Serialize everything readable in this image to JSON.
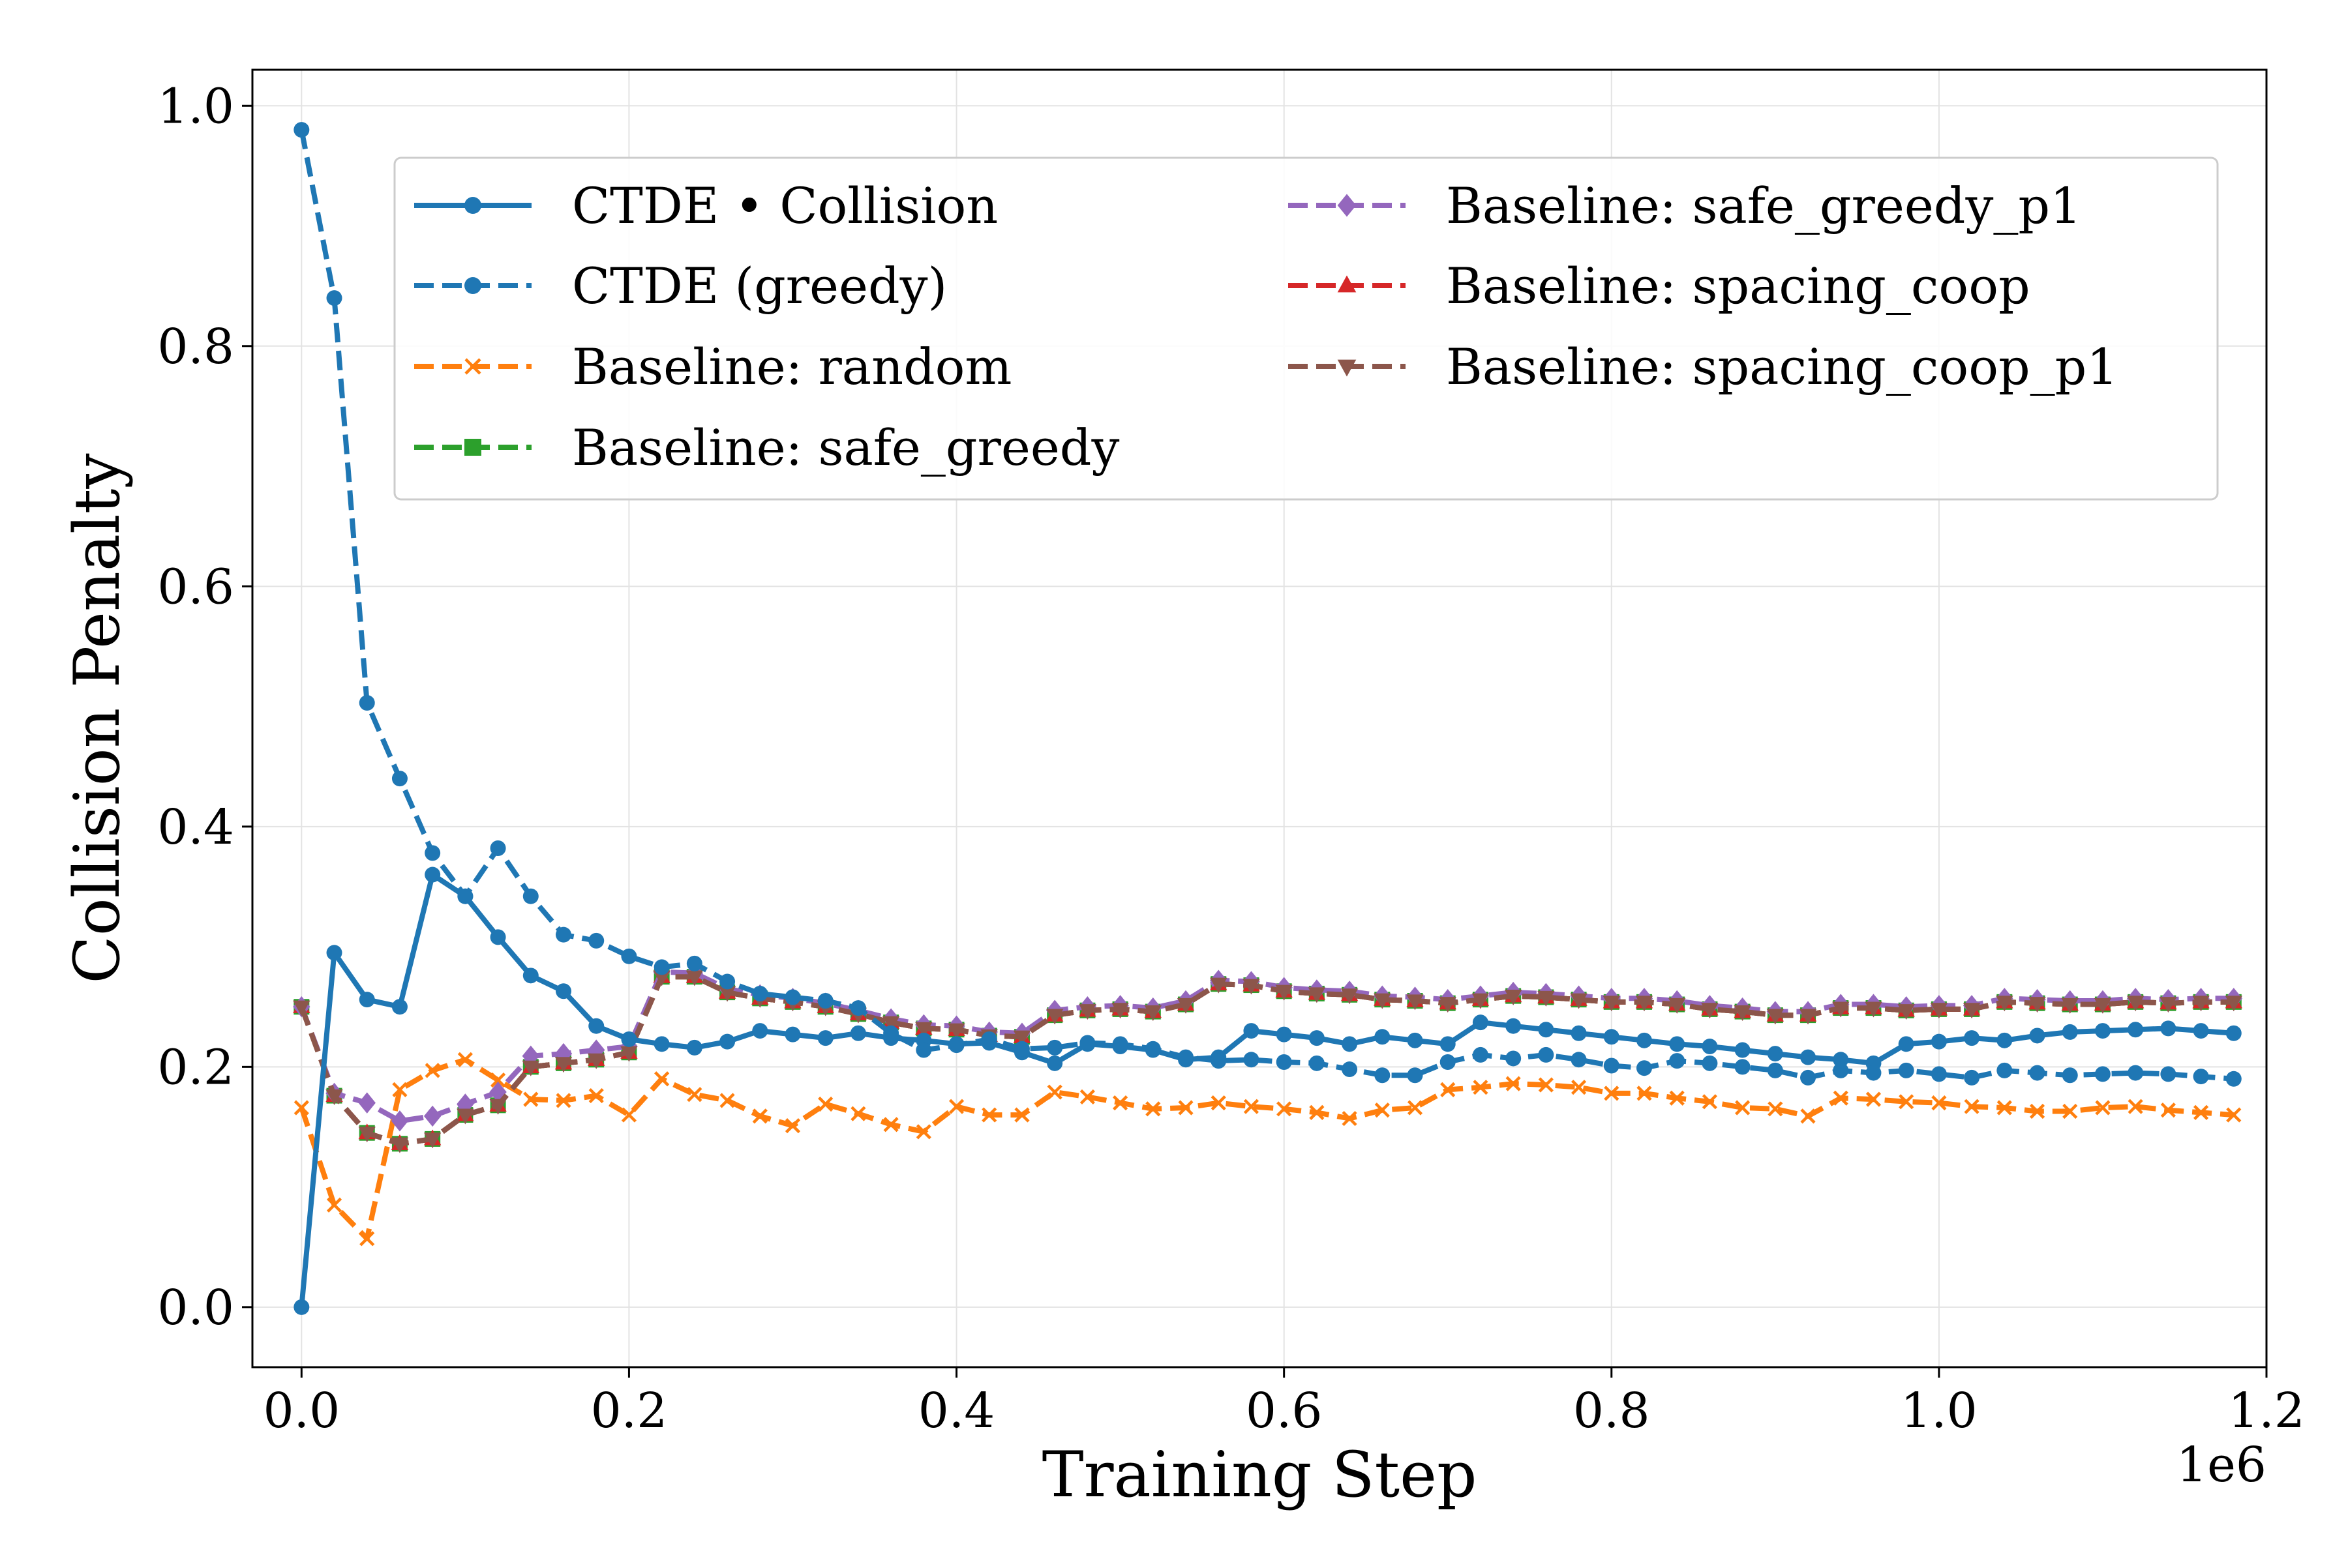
{
  "chart_data": {
    "type": "line",
    "title": "",
    "xlabel": "Training Step",
    "ylabel": "Collision Penalty",
    "x_offset_label": "1e6",
    "xlim": [
      -0.03,
      1.2
    ],
    "ylim": [
      -0.05,
      1.03
    ],
    "x_ticks": [
      0.0,
      0.2,
      0.4,
      0.6,
      0.8,
      1.0,
      1.2
    ],
    "x_tick_labels": [
      "0.0",
      "0.2",
      "0.4",
      "0.6",
      "0.8",
      "1.0",
      "1.2"
    ],
    "y_ticks": [
      0.0,
      0.2,
      0.4,
      0.6,
      0.8,
      1.0
    ],
    "y_tick_labels": [
      "0.0",
      "0.2",
      "0.4",
      "0.6",
      "0.8",
      "1.0"
    ],
    "grid": true,
    "legend_position": "upper-right",
    "x": [
      0.0,
      0.02,
      0.04,
      0.06,
      0.08,
      0.1,
      0.12,
      0.14,
      0.16,
      0.18,
      0.2,
      0.22,
      0.24,
      0.26,
      0.28,
      0.3,
      0.32,
      0.34,
      0.36,
      0.38,
      0.4,
      0.42,
      0.44,
      0.46,
      0.48,
      0.5,
      0.52,
      0.54,
      0.56,
      0.58,
      0.6,
      0.62,
      0.64,
      0.66,
      0.68,
      0.7,
      0.72,
      0.74,
      0.76,
      0.78,
      0.8,
      0.82,
      0.84,
      0.86,
      0.88,
      0.9,
      0.92,
      0.94,
      0.96,
      0.98,
      1.0,
      1.02,
      1.04,
      1.06,
      1.08,
      1.1,
      1.12,
      1.14,
      1.16,
      1.18
    ],
    "series": [
      {
        "name": "CTDE • Collision",
        "color": "#1f77b4",
        "linestyle": "solid",
        "marker": "circle",
        "values": [
          0.0,
          0.295,
          0.256,
          0.25,
          0.36,
          0.342,
          0.308,
          0.276,
          0.263,
          0.234,
          0.223,
          0.219,
          0.216,
          0.221,
          0.23,
          0.227,
          0.224,
          0.228,
          0.224,
          0.222,
          0.219,
          0.22,
          0.212,
          0.203,
          0.219,
          0.217,
          0.214,
          0.206,
          0.208,
          0.23,
          0.227,
          0.224,
          0.219,
          0.225,
          0.222,
          0.219,
          0.237,
          0.234,
          0.231,
          0.228,
          0.225,
          0.222,
          0.219,
          0.217,
          0.214,
          0.211,
          0.208,
          0.206,
          0.203,
          0.219,
          0.221,
          0.224,
          0.222,
          0.226,
          0.229,
          0.23,
          0.231,
          0.232,
          0.23,
          0.228
        ]
      },
      {
        "name": "CTDE (greedy)",
        "color": "#1f77b4",
        "linestyle": "dashed",
        "marker": "circle",
        "values": [
          0.98,
          0.84,
          0.503,
          0.44,
          0.378,
          0.342,
          0.382,
          0.342,
          0.31,
          0.305,
          0.292,
          0.283,
          0.286,
          0.271,
          0.261,
          0.258,
          0.255,
          0.249,
          0.228,
          0.214,
          0.218,
          0.223,
          0.215,
          0.216,
          0.22,
          0.219,
          0.215,
          0.208,
          0.205,
          0.206,
          0.204,
          0.203,
          0.198,
          0.193,
          0.193,
          0.204,
          0.21,
          0.207,
          0.21,
          0.206,
          0.201,
          0.199,
          0.205,
          0.203,
          0.2,
          0.197,
          0.191,
          0.197,
          0.195,
          0.197,
          0.194,
          0.191,
          0.197,
          0.195,
          0.193,
          0.194,
          0.195,
          0.194,
          0.192,
          0.19
        ]
      },
      {
        "name": "Baseline: random",
        "color": "#ff7f0e",
        "linestyle": "dashed",
        "marker": "x",
        "values": [
          0.166,
          0.085,
          0.057,
          0.181,
          0.197,
          0.206,
          0.189,
          0.173,
          0.172,
          0.176,
          0.16,
          0.19,
          0.177,
          0.172,
          0.159,
          0.151,
          0.169,
          0.161,
          0.152,
          0.146,
          0.167,
          0.16,
          0.16,
          0.179,
          0.175,
          0.17,
          0.165,
          0.166,
          0.17,
          0.167,
          0.165,
          0.162,
          0.157,
          0.164,
          0.166,
          0.181,
          0.183,
          0.186,
          0.185,
          0.183,
          0.178,
          0.178,
          0.174,
          0.171,
          0.166,
          0.165,
          0.159,
          0.174,
          0.173,
          0.171,
          0.17,
          0.167,
          0.166,
          0.163,
          0.163,
          0.166,
          0.167,
          0.164,
          0.162,
          0.16
        ]
      },
      {
        "name": "Baseline: safe_greedy",
        "color": "#2ca02c",
        "linestyle": "dashed",
        "marker": "square",
        "values": [
          0.25,
          0.176,
          0.145,
          0.136,
          0.14,
          0.16,
          0.168,
          0.2,
          0.203,
          0.206,
          0.212,
          0.275,
          0.275,
          0.262,
          0.257,
          0.254,
          0.25,
          0.244,
          0.237,
          0.232,
          0.231,
          0.226,
          0.225,
          0.243,
          0.247,
          0.248,
          0.246,
          0.252,
          0.269,
          0.268,
          0.263,
          0.261,
          0.26,
          0.256,
          0.255,
          0.253,
          0.256,
          0.259,
          0.258,
          0.256,
          0.254,
          0.254,
          0.252,
          0.248,
          0.246,
          0.243,
          0.243,
          0.249,
          0.249,
          0.247,
          0.248,
          0.248,
          0.254,
          0.253,
          0.252,
          0.252,
          0.254,
          0.253,
          0.254,
          0.254
        ]
      },
      {
        "name": "Baseline: safe_greedy_p1",
        "color": "#9467bd",
        "linestyle": "dashed",
        "marker": "diamond",
        "values": [
          0.25,
          0.178,
          0.17,
          0.155,
          0.159,
          0.169,
          0.179,
          0.209,
          0.211,
          0.214,
          0.217,
          0.279,
          0.278,
          0.265,
          0.26,
          0.257,
          0.253,
          0.247,
          0.24,
          0.235,
          0.234,
          0.229,
          0.228,
          0.247,
          0.25,
          0.251,
          0.249,
          0.255,
          0.272,
          0.271,
          0.266,
          0.264,
          0.263,
          0.259,
          0.258,
          0.256,
          0.259,
          0.262,
          0.261,
          0.259,
          0.257,
          0.257,
          0.255,
          0.251,
          0.249,
          0.246,
          0.246,
          0.252,
          0.252,
          0.25,
          0.251,
          0.251,
          0.257,
          0.256,
          0.255,
          0.255,
          0.257,
          0.256,
          0.257,
          0.257
        ]
      },
      {
        "name": "Baseline: spacing_coop",
        "color": "#d62728",
        "linestyle": "dashed",
        "marker": "triangle-up",
        "values": [
          0.25,
          0.176,
          0.145,
          0.136,
          0.14,
          0.16,
          0.168,
          0.2,
          0.203,
          0.206,
          0.212,
          0.275,
          0.275,
          0.262,
          0.257,
          0.254,
          0.25,
          0.244,
          0.237,
          0.232,
          0.231,
          0.226,
          0.225,
          0.243,
          0.247,
          0.248,
          0.246,
          0.252,
          0.269,
          0.268,
          0.263,
          0.261,
          0.26,
          0.256,
          0.255,
          0.253,
          0.256,
          0.259,
          0.258,
          0.256,
          0.254,
          0.254,
          0.252,
          0.248,
          0.246,
          0.243,
          0.243,
          0.249,
          0.249,
          0.247,
          0.248,
          0.248,
          0.254,
          0.253,
          0.252,
          0.252,
          0.254,
          0.253,
          0.254,
          0.254
        ]
      },
      {
        "name": "Baseline: spacing_coop_p1",
        "color": "#8c564b",
        "linestyle": "dashed",
        "marker": "triangle-down",
        "values": [
          0.25,
          0.176,
          0.145,
          0.136,
          0.14,
          0.16,
          0.168,
          0.2,
          0.203,
          0.206,
          0.212,
          0.275,
          0.275,
          0.262,
          0.257,
          0.254,
          0.25,
          0.244,
          0.237,
          0.232,
          0.231,
          0.226,
          0.225,
          0.243,
          0.247,
          0.248,
          0.246,
          0.252,
          0.269,
          0.268,
          0.263,
          0.261,
          0.26,
          0.256,
          0.255,
          0.253,
          0.256,
          0.259,
          0.258,
          0.256,
          0.254,
          0.254,
          0.252,
          0.248,
          0.246,
          0.243,
          0.243,
          0.249,
          0.249,
          0.247,
          0.248,
          0.248,
          0.254,
          0.253,
          0.252,
          0.252,
          0.254,
          0.253,
          0.254,
          0.254
        ]
      }
    ]
  }
}
